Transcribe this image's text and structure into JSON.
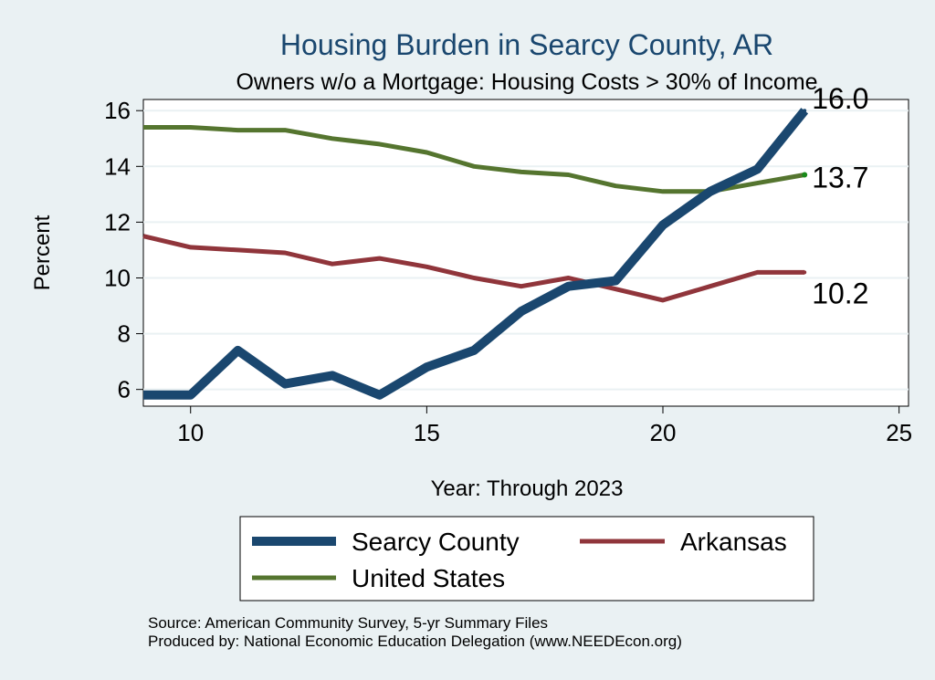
{
  "chart_data": {
    "type": "line",
    "title": "Housing Burden in Searcy County, AR",
    "subtitle": "Owners w/o a Mortgage: Housing Costs > 30% of Income",
    "xlabel": "Year: Through 2023",
    "ylabel": "Percent",
    "xlim": [
      9,
      25.2
    ],
    "ylim": [
      5.4,
      16.4
    ],
    "x_ticks": [
      "10",
      "15",
      "20",
      "25"
    ],
    "y_ticks": [
      "6",
      "8",
      "10",
      "12",
      "14",
      "16"
    ],
    "x_tick_values": [
      10,
      15,
      20,
      25
    ],
    "y_tick_values": [
      6,
      8,
      10,
      12,
      14,
      16
    ],
    "grid": true,
    "x": [
      9,
      10,
      11,
      12,
      13,
      14,
      15,
      16,
      17,
      18,
      19,
      20,
      21,
      22,
      23
    ],
    "series": [
      {
        "name": "Searcy County",
        "color": "#1a476f",
        "values": [
          5.8,
          5.8,
          7.4,
          6.2,
          6.5,
          5.8,
          6.8,
          7.4,
          8.8,
          9.7,
          9.9,
          11.9,
          13.1,
          13.9,
          16.0
        ],
        "end_label": "16.0"
      },
      {
        "name": "Arkansas",
        "color": "#90353b",
        "values": [
          11.5,
          11.1,
          11.0,
          10.9,
          10.5,
          10.7,
          10.4,
          10.0,
          9.7,
          10.0,
          9.6,
          9.2,
          9.7,
          10.2,
          10.2
        ],
        "end_label": "10.2"
      },
      {
        "name": "United States",
        "color": "#55752f",
        "values": [
          15.4,
          15.4,
          15.3,
          15.3,
          15.0,
          14.8,
          14.5,
          14.0,
          13.8,
          13.7,
          13.3,
          13.1,
          13.1,
          13.4,
          13.7
        ],
        "end_label": "13.7"
      }
    ],
    "legend": {
      "position": "bottom",
      "entries": [
        "Searcy County",
        "Arkansas",
        "United States"
      ]
    }
  },
  "footer": {
    "source": "Source: American Community Survey, 5-yr Summary Files",
    "produced_by": "Produced by: National Economic Education Delegation (www.NEEDEcon.org)"
  },
  "colors": {
    "background": "#eaf1f3",
    "plot_background": "#ffffff",
    "gridline": "#eaf1f3",
    "title": "#1a476f"
  }
}
